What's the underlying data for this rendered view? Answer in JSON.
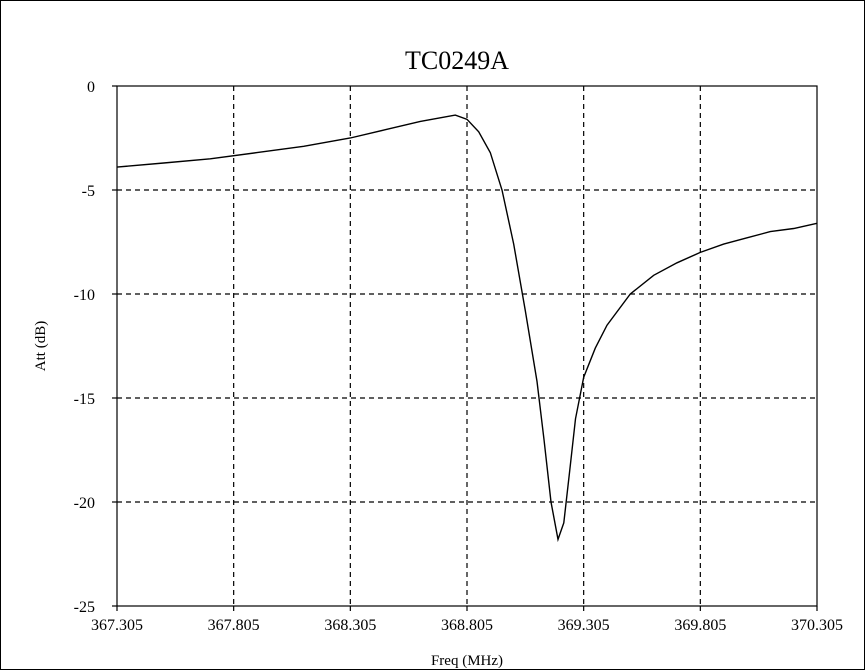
{
  "chart_data": {
    "type": "line",
    "title": "TC0249A",
    "xlabel": "Freq (MHz)",
    "ylabel": "Att (dB)",
    "xlim": [
      367.305,
      370.305
    ],
    "ylim": [
      -25,
      0
    ],
    "grid": true,
    "x_ticks": [
      367.305,
      367.805,
      368.305,
      368.805,
      369.305,
      369.805,
      370.305
    ],
    "x_tick_labels": [
      "367.305",
      "367.805",
      "368.305",
      "368.805",
      "369.305",
      "369.805",
      "370.305"
    ],
    "y_ticks": [
      0,
      -5,
      -10,
      -15,
      -20,
      -25
    ],
    "y_tick_labels": [
      "0",
      "-5",
      "-10",
      "-15",
      "-20",
      "-25"
    ],
    "series": [
      {
        "x": [
          367.305,
          367.505,
          367.705,
          367.905,
          368.105,
          368.305,
          368.455,
          368.605,
          368.705,
          368.755,
          368.805,
          368.855,
          368.905,
          368.955,
          369.005,
          369.055,
          369.105,
          369.135,
          369.165,
          369.195,
          369.22,
          369.245,
          369.27,
          369.305,
          369.355,
          369.405,
          369.505,
          369.605,
          369.705,
          369.805,
          369.905,
          370.005,
          370.105,
          370.205,
          370.305
        ],
        "y": [
          -3.9,
          -3.7,
          -3.5,
          -3.2,
          -2.9,
          -2.5,
          -2.1,
          -1.7,
          -1.5,
          -1.4,
          -1.6,
          -2.2,
          -3.2,
          -5.0,
          -7.6,
          -10.8,
          -14.2,
          -17.0,
          -20.0,
          -21.8,
          -21.0,
          -18.5,
          -16.0,
          -14.0,
          -12.6,
          -11.5,
          -10.0,
          -9.1,
          -8.5,
          -8.0,
          -7.6,
          -7.3,
          -7.0,
          -6.85,
          -6.6
        ]
      }
    ]
  }
}
